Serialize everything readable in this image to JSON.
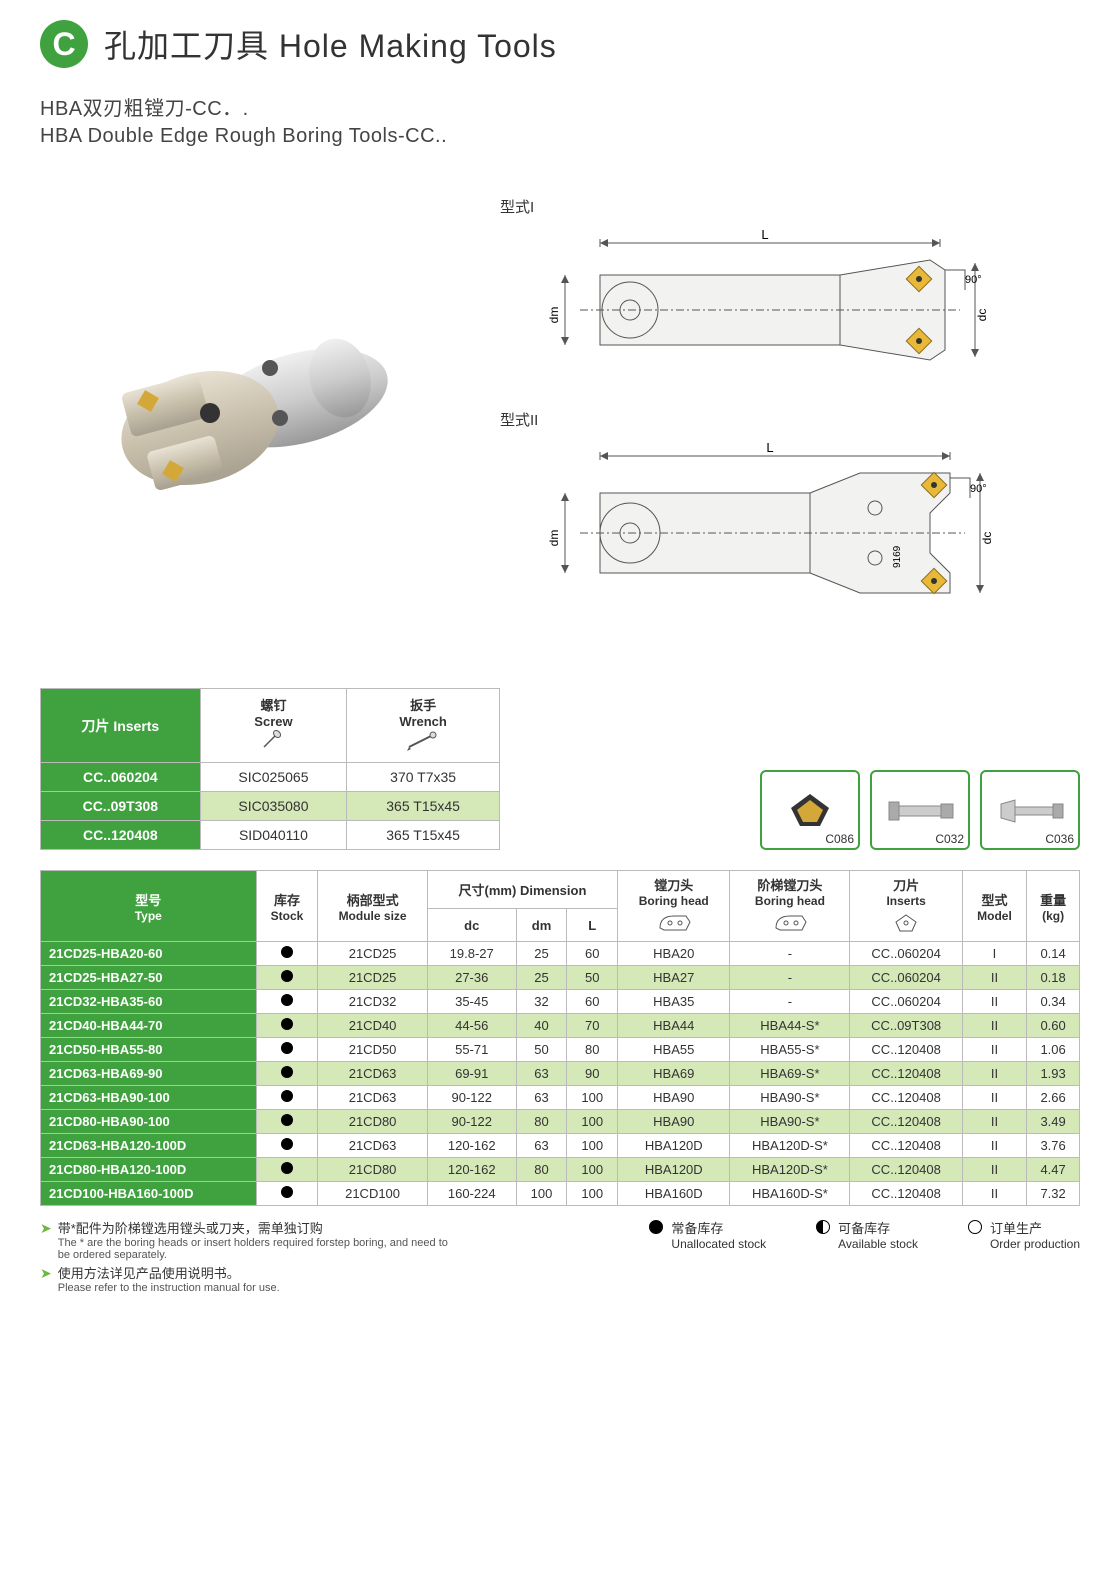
{
  "header": {
    "badge": "C",
    "title": "孔加工刀具 Hole Making Tools",
    "subtitle_cn": "HBA双刃粗镗刀-CC．.",
    "subtitle_en": "HBA Double Edge Rough Boring Tools-CC.."
  },
  "diagrams": {
    "type1_label": "型式I",
    "type2_label": "型式II",
    "dim_L": "L",
    "dim_dm": "dm",
    "dim_dc": "dc",
    "angle": "90°",
    "num": "9169"
  },
  "inserts_table": {
    "header_inserts_cn": "刀片",
    "header_inserts_en": "Inserts",
    "header_screw_cn": "螺钉",
    "header_screw_en": "Screw",
    "header_wrench_cn": "扳手",
    "header_wrench_en": "Wrench",
    "rows": [
      {
        "insert": "CC..060204",
        "screw": "SIC025065",
        "wrench": "370 T7x35"
      },
      {
        "insert": "CC..09T308",
        "screw": "SIC035080",
        "wrench": "365 T15x45"
      },
      {
        "insert": "CC..120408",
        "screw": "SID040110",
        "wrench": "365 T15x45"
      }
    ]
  },
  "ref_thumbs": [
    {
      "label": "C086"
    },
    {
      "label": "C032"
    },
    {
      "label": "C036"
    }
  ],
  "main_table": {
    "headers": {
      "type_cn": "型号",
      "type_en": "Type",
      "stock_cn": "库存",
      "stock_en": "Stock",
      "module_cn": "柄部型式",
      "module_en": "Module size",
      "dim_cn": "尺寸(mm)",
      "dim_en": "Dimension",
      "dc": "dc",
      "dm": "dm",
      "L": "L",
      "boring1_cn": "镗刀头",
      "boring1_en": "Boring head",
      "boring2_cn": "阶梯镗刀头",
      "boring2_en": "Boring head",
      "inserts_cn": "刀片",
      "inserts_en": "Inserts",
      "model_cn": "型式",
      "model_en": "Model",
      "weight_cn": "重量",
      "weight_en": "(kg)"
    },
    "rows": [
      {
        "type": "21CD25-HBA20-60",
        "module": "21CD25",
        "dc": "19.8-27",
        "dm": "25",
        "L": "60",
        "head1": "HBA20",
        "head2": "-",
        "insert": "CC..060204",
        "model": "I",
        "wt": "0.14"
      },
      {
        "type": "21CD25-HBA27-50",
        "module": "21CD25",
        "dc": "27-36",
        "dm": "25",
        "L": "50",
        "head1": "HBA27",
        "head2": "-",
        "insert": "CC..060204",
        "model": "II",
        "wt": "0.18"
      },
      {
        "type": "21CD32-HBA35-60",
        "module": "21CD32",
        "dc": "35-45",
        "dm": "32",
        "L": "60",
        "head1": "HBA35",
        "head2": "-",
        "insert": "CC..060204",
        "model": "II",
        "wt": "0.34"
      },
      {
        "type": "21CD40-HBA44-70",
        "module": "21CD40",
        "dc": "44-56",
        "dm": "40",
        "L": "70",
        "head1": "HBA44",
        "head2": "HBA44-S*",
        "insert": "CC..09T308",
        "model": "II",
        "wt": "0.60"
      },
      {
        "type": "21CD50-HBA55-80",
        "module": "21CD50",
        "dc": "55-71",
        "dm": "50",
        "L": "80",
        "head1": "HBA55",
        "head2": "HBA55-S*",
        "insert": "CC..120408",
        "model": "II",
        "wt": "1.06"
      },
      {
        "type": "21CD63-HBA69-90",
        "module": "21CD63",
        "dc": "69-91",
        "dm": "63",
        "L": "90",
        "head1": "HBA69",
        "head2": "HBA69-S*",
        "insert": "CC..120408",
        "model": "II",
        "wt": "1.93"
      },
      {
        "type": "21CD63-HBA90-100",
        "module": "21CD63",
        "dc": "90-122",
        "dm": "63",
        "L": "100",
        "head1": "HBA90",
        "head2": "HBA90-S*",
        "insert": "CC..120408",
        "model": "II",
        "wt": "2.66"
      },
      {
        "type": "21CD80-HBA90-100",
        "module": "21CD80",
        "dc": "90-122",
        "dm": "80",
        "L": "100",
        "head1": "HBA90",
        "head2": "HBA90-S*",
        "insert": "CC..120408",
        "model": "II",
        "wt": "3.49"
      },
      {
        "type": "21CD63-HBA120-100D",
        "module": "21CD63",
        "dc": "120-162",
        "dm": "63",
        "L": "100",
        "head1": "HBA120D",
        "head2": "HBA120D-S*",
        "insert": "CC..120408",
        "model": "II",
        "wt": "3.76"
      },
      {
        "type": "21CD80-HBA120-100D",
        "module": "21CD80",
        "dc": "120-162",
        "dm": "80",
        "L": "100",
        "head1": "HBA120D",
        "head2": "HBA120D-S*",
        "insert": "CC..120408",
        "model": "II",
        "wt": "4.47"
      },
      {
        "type": "21CD100-HBA160-100D",
        "module": "21CD100",
        "dc": "160-224",
        "dm": "100",
        "L": "100",
        "head1": "HBA160D",
        "head2": "HBA160D-S*",
        "insert": "CC..120408",
        "model": "II",
        "wt": "7.32"
      }
    ]
  },
  "footnotes": {
    "note1_cn": "带*配件为阶梯镗选用镗头或刀夹，需单独订购",
    "note1_en": "The * are the boring heads or insert holders required forstep boring, and need to be ordered separately.",
    "note2_cn": "使用方法详见产品使用说明书。",
    "note2_en": "Please refer to the instruction manual for use.",
    "legend": [
      {
        "sym": "filled",
        "cn": "常备库存",
        "en": "Unallocated stock"
      },
      {
        "sym": "half",
        "cn": "可备库存",
        "en": "Available stock"
      },
      {
        "sym": "empty",
        "cn": "订单生产",
        "en": "Order production"
      }
    ]
  },
  "colors": {
    "green": "#3fa23f",
    "light_green": "#d5e8b8",
    "border": "#bbbbbb"
  }
}
